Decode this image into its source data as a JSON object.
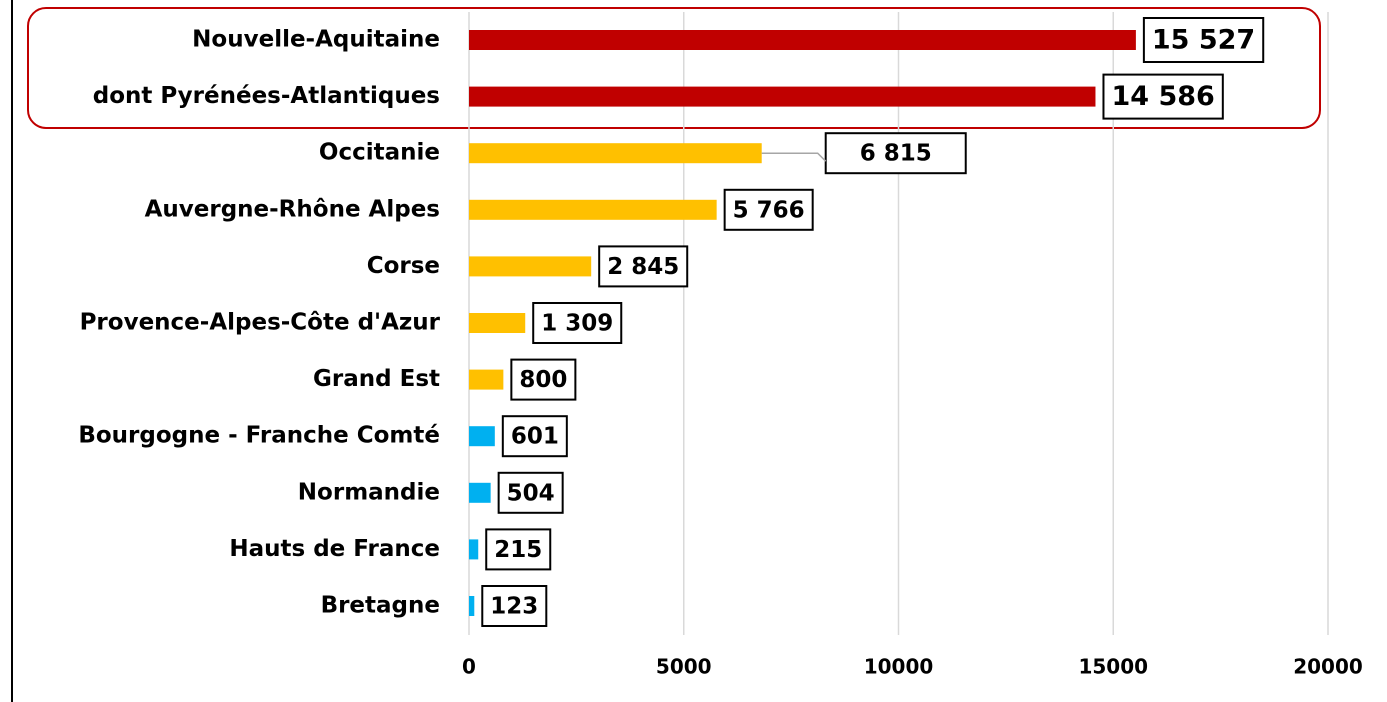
{
  "chart_data": {
    "type": "bar",
    "orientation": "horizontal",
    "categories": [
      "Nouvelle-Aquitaine",
      "dont Pyrénées-Atlantiques",
      "Occitanie",
      "Auvergne-Rhône Alpes",
      "Corse",
      "Provence-Alpes-Côte d'Azur",
      "Grand Est",
      "Bourgogne - Franche Comté",
      "Normandie",
      "Hauts de France",
      "Bretagne"
    ],
    "values": [
      15527,
      14586,
      6815,
      5766,
      2845,
      1309,
      800,
      601,
      504,
      215,
      123
    ],
    "value_labels": [
      "15 527",
      "14 586",
      "6 815",
      "5 766",
      "2 845",
      "1 309",
      "800",
      "601",
      "504",
      "215",
      "123"
    ],
    "colors": [
      "#c00000",
      "#c00000",
      "#ffc000",
      "#ffc000",
      "#ffc000",
      "#ffc000",
      "#ffc000",
      "#00b0f0",
      "#00b0f0",
      "#00b0f0",
      "#00b0f0"
    ],
    "xlim": [
      0,
      20000
    ],
    "xticks": [
      0,
      5000,
      10000,
      15000,
      20000
    ],
    "grid": true
  }
}
